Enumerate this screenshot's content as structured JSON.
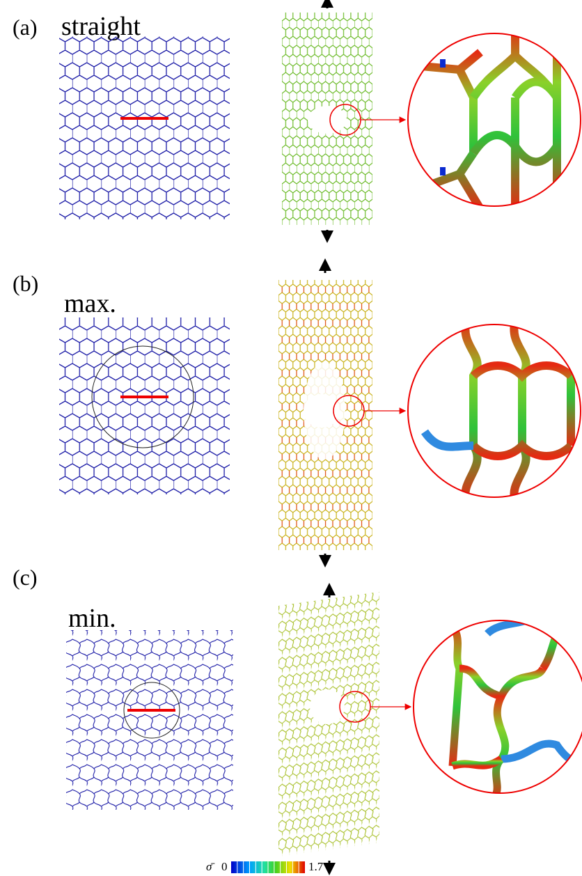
{
  "panels": [
    {
      "label": "(a)",
      "title": "straight"
    },
    {
      "label": "(b)",
      "title": "max."
    },
    {
      "label": "(c)",
      "title": "min."
    }
  ],
  "colorbar": {
    "symbol": "σ̄",
    "min": 0,
    "max": 1.7
  }
}
